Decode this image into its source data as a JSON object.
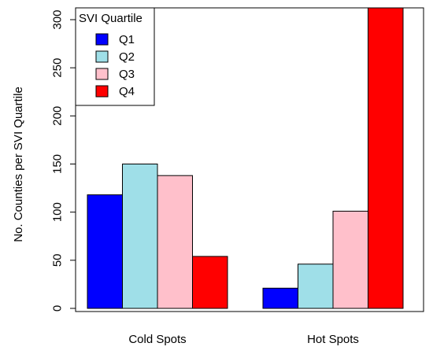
{
  "chart_data": {
    "type": "bar",
    "categories": [
      "Cold Spots",
      "Hot Spots"
    ],
    "series": [
      {
        "name": "Q1",
        "color": "#0000ff",
        "values": [
          118,
          21
        ]
      },
      {
        "name": "Q2",
        "color": "#9fdfe8",
        "values": [
          150,
          46
        ]
      },
      {
        "name": "Q3",
        "color": "#ffc0cb",
        "values": [
          138,
          101
        ]
      },
      {
        "name": "Q4",
        "color": "#ff0000",
        "values": [
          54,
          325
        ]
      }
    ],
    "ylabel": "No. Counties per SVI Quartile",
    "xlabel": "",
    "ylim": [
      0,
      310
    ],
    "yticks": [
      0,
      50,
      100,
      150,
      200,
      250,
      300
    ],
    "legend": {
      "title": "SVI Quartile",
      "position": "top-left"
    },
    "grid": false
  }
}
